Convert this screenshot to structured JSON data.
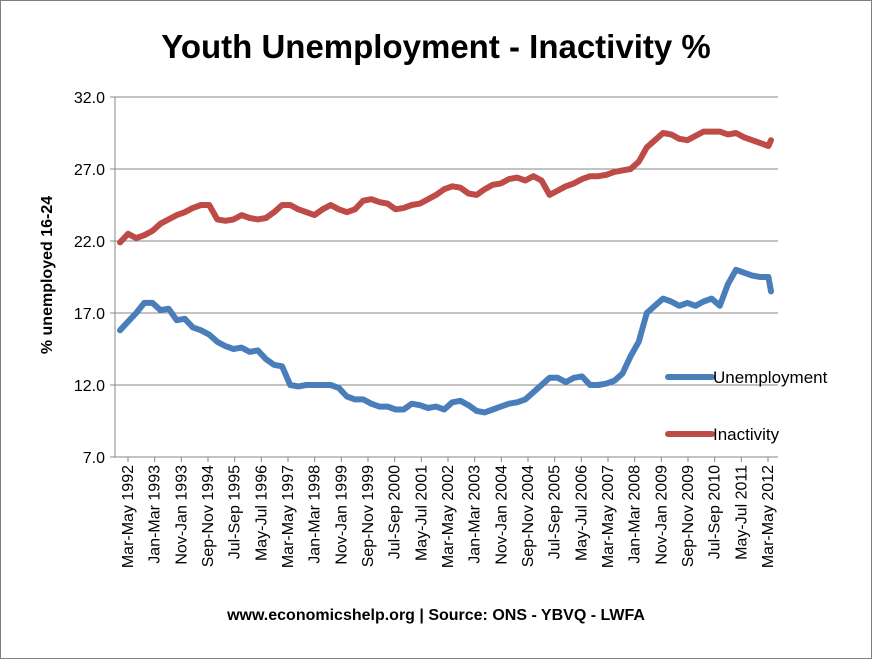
{
  "chart_data": {
    "type": "line",
    "title": "Youth Unemployment - Inactivity %",
    "ylabel": "% unemployed 16-24",
    "footer": "www.economicshelp.org | Source:  ONS - YBVQ - LWFA",
    "ylim": [
      7.0,
      32.0
    ],
    "yticks": [
      "7.0",
      "12.0",
      "17.0",
      "22.0",
      "27.0",
      "32.0"
    ],
    "xtick_labels": [
      "Mar-May 1992",
      "Jan-Mar 1993",
      "Nov-Jan 1993",
      "Sep-Nov 1994",
      "Jul-Sep 1995",
      "May-Jul 1996",
      "Mar-May 1997",
      "Jan-Mar 1998",
      "Nov-Jan 1999",
      "Sep-Nov 1999",
      "Jul-Sep 2000",
      "May-Jul 2001",
      "Mar-May 2002",
      "Jan-Mar 2003",
      "Nov-Jan 2004",
      "Sep-Nov 2004",
      "Jul-Sep 2005",
      "May-Jul 2006",
      "Mar-May 2007",
      "Jan-Mar 2008",
      "Nov-Jan 2009",
      "Sep-Nov 2009",
      "Jul-Sep 2010",
      "May-Jul 2011",
      "Mar-May 2012"
    ],
    "x": [
      1992.25,
      1992.5,
      1992.75,
      1993.0,
      1993.25,
      1993.5,
      1993.75,
      1994.0,
      1994.25,
      1994.5,
      1994.75,
      1995.0,
      1995.25,
      1995.5,
      1995.75,
      1996.0,
      1996.25,
      1996.5,
      1996.75,
      1997.0,
      1997.25,
      1997.5,
      1997.75,
      1998.0,
      1998.25,
      1998.5,
      1998.75,
      1999.0,
      1999.25,
      1999.5,
      1999.75,
      2000.0,
      2000.25,
      2000.5,
      2000.75,
      2001.0,
      2001.25,
      2001.5,
      2001.75,
      2002.0,
      2002.25,
      2002.5,
      2002.75,
      2003.0,
      2003.25,
      2003.5,
      2003.75,
      2004.0,
      2004.25,
      2004.5,
      2004.75,
      2005.0,
      2005.25,
      2005.5,
      2005.75,
      2006.0,
      2006.25,
      2006.5,
      2006.75,
      2007.0,
      2007.25,
      2007.5,
      2007.75,
      2008.0,
      2008.25,
      2008.5,
      2008.75,
      2009.0,
      2009.25,
      2009.5,
      2009.75,
      2010.0,
      2010.25,
      2010.5,
      2010.75,
      2011.0,
      2011.25,
      2011.5,
      2011.75,
      2012.0,
      2012.25,
      2012.33
    ],
    "series": [
      {
        "name": "Unemployment",
        "color": "#4a7ebb",
        "values": [
          15.8,
          16.4,
          17.0,
          17.7,
          17.7,
          17.2,
          17.3,
          16.5,
          16.6,
          16.0,
          15.8,
          15.5,
          15.0,
          14.7,
          14.5,
          14.6,
          14.3,
          14.4,
          13.8,
          13.4,
          13.3,
          12.0,
          11.9,
          12.0,
          12.0,
          12.0,
          12.0,
          11.8,
          11.2,
          11.0,
          11.0,
          10.7,
          10.5,
          10.5,
          10.3,
          10.3,
          10.7,
          10.6,
          10.4,
          10.5,
          10.3,
          10.8,
          10.9,
          10.6,
          10.2,
          10.1,
          10.3,
          10.5,
          10.7,
          10.8,
          11.0,
          11.5,
          12.0,
          12.5,
          12.5,
          12.2,
          12.5,
          12.6,
          12.0,
          12.0,
          12.1,
          12.3,
          12.8,
          14.0,
          15.0,
          17.0,
          17.5,
          18.0,
          17.8,
          17.5,
          17.7,
          17.5,
          17.8,
          18.0,
          17.5,
          19.0,
          20.0,
          19.8,
          19.6,
          19.5,
          19.5,
          18.5
        ]
      },
      {
        "name": "Inactivity",
        "color": "#be4b48",
        "values": [
          21.9,
          22.5,
          22.2,
          22.4,
          22.7,
          23.2,
          23.5,
          23.8,
          24.0,
          24.3,
          24.5,
          24.5,
          23.5,
          23.4,
          23.5,
          23.8,
          23.6,
          23.5,
          23.6,
          24.0,
          24.5,
          24.5,
          24.2,
          24.0,
          23.8,
          24.2,
          24.5,
          24.2,
          24.0,
          24.2,
          24.8,
          24.9,
          24.7,
          24.6,
          24.2,
          24.3,
          24.5,
          24.6,
          24.9,
          25.2,
          25.6,
          25.8,
          25.7,
          25.3,
          25.2,
          25.6,
          25.9,
          26.0,
          26.3,
          26.4,
          26.2,
          26.5,
          26.2,
          25.2,
          25.5,
          25.8,
          26.0,
          26.3,
          26.5,
          26.5,
          26.6,
          26.8,
          26.9,
          27.0,
          27.5,
          28.5,
          29.0,
          29.5,
          29.4,
          29.1,
          29.0,
          29.3,
          29.6,
          29.6,
          29.6,
          29.4,
          29.5,
          29.2,
          29.0,
          28.8,
          28.6,
          29.0
        ]
      }
    ],
    "legend": "right",
    "grid": "horizontal"
  }
}
